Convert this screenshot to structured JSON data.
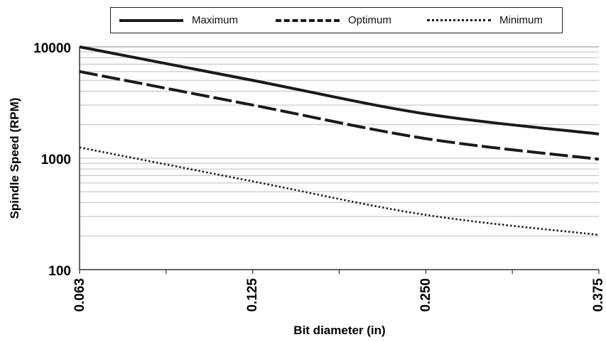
{
  "chart_data": {
    "type": "line",
    "title": "",
    "xlabel": "Bit diameter (in)",
    "ylabel": "Spindle Speed (RPM)",
    "x_scale": "categorical",
    "y_scale": "log",
    "ylim": [
      100,
      10000
    ],
    "categories": [
      "0.063",
      "0.125",
      "0.250",
      "0.375"
    ],
    "y_ticks": [
      "100",
      "1000",
      "10000"
    ],
    "grid": "horizontal",
    "legend_position": "top",
    "series": [
      {
        "name": "Maximum",
        "style": "solid",
        "points": [
          [
            0,
            10000
          ],
          [
            1,
            5000
          ],
          [
            2,
            2500
          ],
          [
            3,
            1650
          ]
        ]
      },
      {
        "name": "Optimum",
        "style": "dashed",
        "points": [
          [
            0,
            6000
          ],
          [
            1,
            3000
          ],
          [
            2,
            1500
          ],
          [
            3,
            980
          ]
        ]
      },
      {
        "name": "Minimum",
        "style": "dotted",
        "points": [
          [
            0,
            1250
          ],
          [
            1,
            620
          ],
          [
            2,
            310
          ],
          [
            3,
            205
          ]
        ]
      }
    ]
  }
}
